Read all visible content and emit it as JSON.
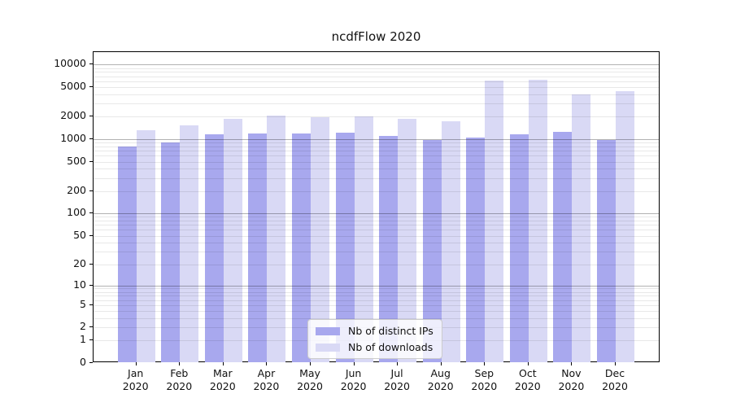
{
  "chart_data": {
    "type": "bar",
    "title": "ncdfFlow 2020",
    "categories": [
      "Jan 2020",
      "Feb 2020",
      "Mar 2020",
      "Apr 2020",
      "May 2020",
      "Jun 2020",
      "Jul 2020",
      "Aug 2020",
      "Sep 2020",
      "Oct 2020",
      "Nov 2020",
      "Dec 2020"
    ],
    "series": [
      {
        "name": "Nb of distinct IPs",
        "color": "#a8a8ee",
        "values": [
          800,
          905,
          1160,
          1190,
          1200,
          1220,
          1100,
          970,
          1040,
          1170,
          1250,
          985
        ]
      },
      {
        "name": "Nb of downloads",
        "color": "#d9d9f5",
        "values": [
          1310,
          1520,
          1870,
          2090,
          1950,
          2020,
          1860,
          1750,
          6150,
          6300,
          4000,
          4450
        ]
      }
    ],
    "yscale": "log1p",
    "yticks": [
      0,
      1,
      2,
      5,
      10,
      20,
      50,
      100,
      200,
      500,
      1000,
      2000,
      5000,
      10000
    ],
    "ylim": [
      0,
      14700
    ],
    "xlabel": "",
    "ylabel": "",
    "grid": true,
    "grid_major_decades": [
      10,
      100,
      1000,
      10000
    ],
    "legend_position": "lower center"
  }
}
